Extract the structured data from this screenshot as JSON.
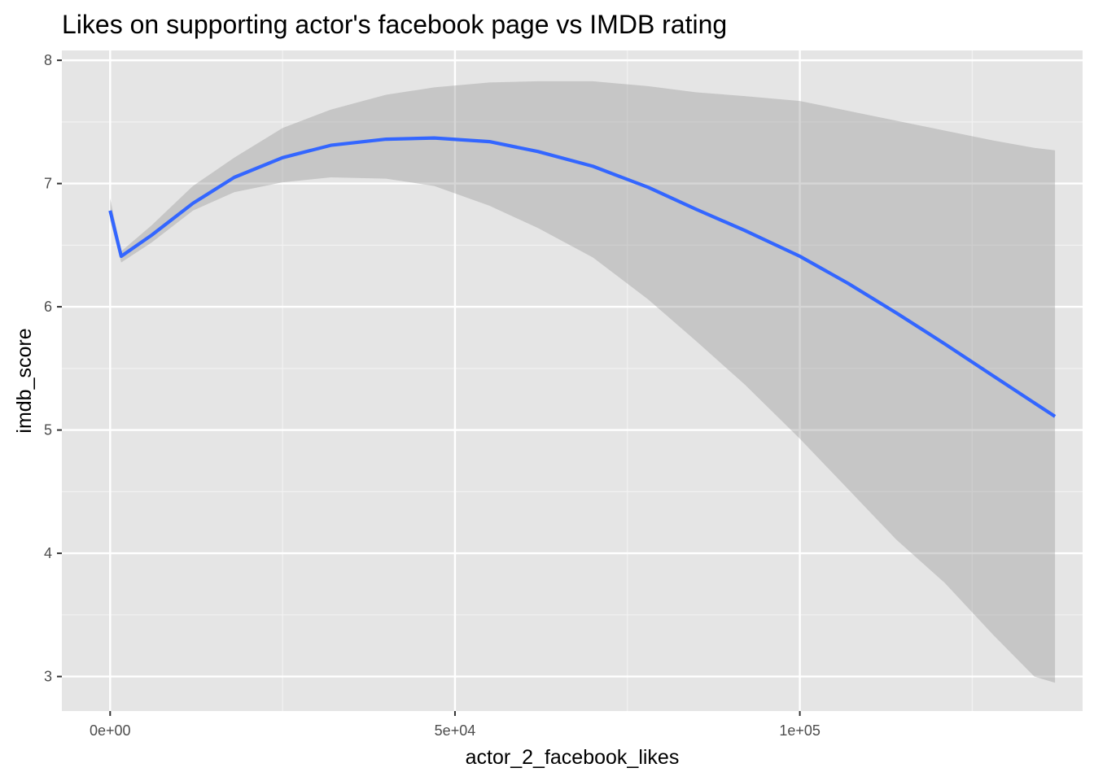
{
  "chart_data": {
    "type": "line",
    "title": "Likes on supporting actor's facebook page vs IMDB rating",
    "xlabel": "actor_2_facebook_likes",
    "ylabel": "imdb_score",
    "xlim": [
      -7000,
      141000
    ],
    "ylim": [
      2.72,
      8.08
    ],
    "x_ticks": [
      {
        "value": 0,
        "label": "0e+00"
      },
      {
        "value": 50000,
        "label": "5e+04"
      },
      {
        "value": 100000,
        "label": "1e+05"
      }
    ],
    "y_ticks": [
      {
        "value": 3,
        "label": "3"
      },
      {
        "value": 4,
        "label": "4"
      },
      {
        "value": 5,
        "label": "5"
      },
      {
        "value": 6,
        "label": "6"
      },
      {
        "value": 7,
        "label": "7"
      },
      {
        "value": 8,
        "label": "8"
      }
    ],
    "grid": true,
    "series": [
      {
        "color": "#3366ff",
        "x": [
          0,
          1600,
          6000,
          12000,
          18000,
          25000,
          32000,
          40000,
          47000,
          55000,
          62000,
          70000,
          78000,
          85000,
          92000,
          100000,
          107000,
          114000,
          121000,
          128000,
          134000,
          137000
        ],
        "y": [
          6.78,
          6.41,
          6.58,
          6.84,
          7.05,
          7.21,
          7.31,
          7.36,
          7.37,
          7.34,
          7.26,
          7.14,
          6.97,
          6.79,
          6.62,
          6.41,
          6.19,
          5.95,
          5.7,
          5.44,
          5.22,
          5.11
        ],
        "ci_lower": [
          6.7,
          6.36,
          6.52,
          6.78,
          6.93,
          7.01,
          7.05,
          7.04,
          6.98,
          6.82,
          6.64,
          6.4,
          6.06,
          5.72,
          5.37,
          4.93,
          4.52,
          4.11,
          3.76,
          3.34,
          3.0,
          2.95
        ],
        "ci_upper": [
          6.88,
          6.45,
          6.66,
          6.98,
          7.21,
          7.45,
          7.6,
          7.72,
          7.78,
          7.82,
          7.83,
          7.83,
          7.79,
          7.74,
          7.71,
          7.67,
          7.59,
          7.51,
          7.43,
          7.35,
          7.29,
          7.27
        ]
      }
    ]
  }
}
